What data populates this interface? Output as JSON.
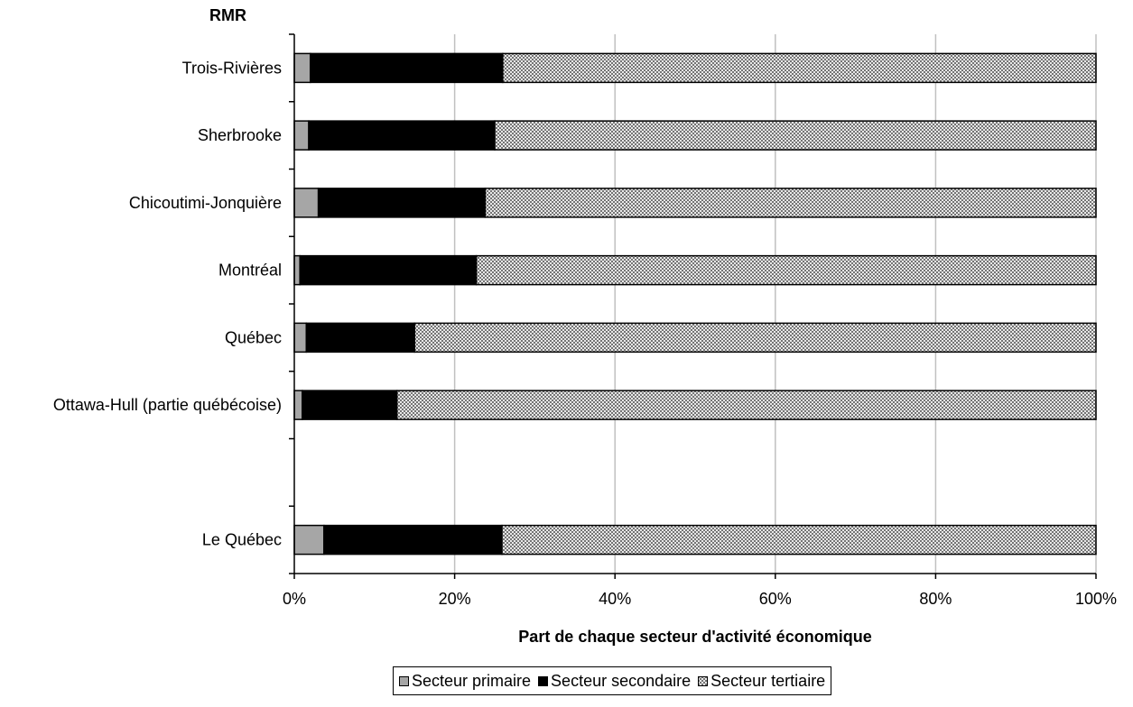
{
  "chart_data": {
    "type": "bar",
    "orientation": "horizontal",
    "stacked": true,
    "percent": true,
    "y_axis_title": "RMR",
    "xlabel": "Part de chaque secteur d'activité économique",
    "xlim": [
      0,
      100
    ],
    "x_ticks": [
      "0%",
      "20%",
      "40%",
      "60%",
      "80%",
      "100%"
    ],
    "grid": "vertical",
    "legend_position": "bottom",
    "categories": [
      "Trois-Rivières",
      "Sherbrooke",
      "Chicoutimi-Jonquière",
      "Montréal",
      "Québec",
      "Ottawa-Hull (partie québécoise)",
      "",
      "Le Québec"
    ],
    "series": [
      {
        "name": "Secteur primaire",
        "color": "#a6a6a6",
        "pattern": "solid",
        "values": [
          2.0,
          1.8,
          3.0,
          0.7,
          1.5,
          1.0,
          null,
          3.7
        ]
      },
      {
        "name": "Secteur secondaire",
        "color": "#000000",
        "pattern": "solid",
        "values": [
          24.0,
          23.2,
          20.8,
          22.0,
          13.5,
          11.8,
          null,
          22.2
        ]
      },
      {
        "name": "Secteur tertiaire",
        "color": "#ffffff",
        "pattern": "crosshatch",
        "values": [
          74.0,
          75.0,
          76.2,
          77.3,
          85.0,
          87.2,
          null,
          74.1
        ]
      }
    ]
  }
}
